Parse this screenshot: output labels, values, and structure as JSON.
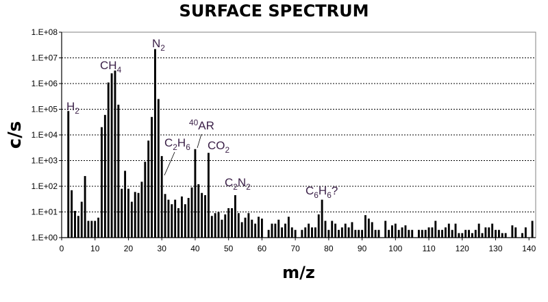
{
  "chart_data": {
    "type": "bar",
    "title": "SURFACE SPECTRUM",
    "xlabel": "m/z",
    "ylabel": "c/s",
    "y_scale": "log",
    "ylim": [
      1,
      100000000
    ],
    "xlim": [
      0,
      142
    ],
    "grid": "horizontal dotted",
    "x_ticks": [
      "0",
      "10",
      "20",
      "30",
      "40",
      "50",
      "60",
      "70",
      "80",
      "90",
      "100",
      "110",
      "120",
      "130",
      "140"
    ],
    "y_ticks": [
      "1.E+00",
      "1.E+01",
      "1.E+02",
      "1.E+03",
      "1.E+04",
      "1.E+05",
      "1.E+06",
      "1.E+07",
      "1.E+08"
    ],
    "series": [
      {
        "x": [
          2,
          3,
          4,
          5,
          6,
          7,
          8,
          9,
          10,
          11,
          12,
          13,
          14,
          15,
          16,
          17,
          18,
          19,
          20,
          21,
          22,
          23,
          24,
          25,
          26,
          27,
          28,
          29,
          30,
          31,
          32,
          33,
          34,
          35,
          36,
          37,
          38,
          39,
          40,
          41,
          42,
          43,
          44,
          45,
          46,
          47,
          48,
          49,
          50,
          51,
          52,
          53,
          54,
          55,
          56,
          57,
          58,
          59,
          60,
          62,
          63,
          64,
          65,
          66,
          67,
          68,
          69,
          70,
          72,
          73,
          74,
          75,
          76,
          77,
          78,
          79,
          80,
          81,
          82,
          83,
          84,
          85,
          86,
          87,
          88,
          89,
          90,
          91,
          92,
          93,
          94,
          95,
          97,
          98,
          99,
          100,
          101,
          102,
          103,
          104,
          105,
          107,
          108,
          109,
          110,
          111,
          112,
          113,
          114,
          115,
          116,
          117,
          118,
          119,
          120,
          121,
          122,
          123,
          124,
          125,
          126,
          127,
          128,
          129,
          130,
          131,
          132,
          133,
          135,
          136,
          138,
          139,
          141
        ],
        "y": [
          85000,
          70,
          11,
          7,
          25,
          250,
          4.5,
          4.5,
          4.5,
          6,
          20000,
          60000,
          1100000,
          2500000,
          3200000,
          150000,
          80,
          400,
          80,
          25,
          60,
          55,
          150,
          900,
          6000,
          50000,
          22000000,
          250000,
          1500,
          50,
          30,
          20,
          30,
          14,
          40,
          20,
          35,
          90,
          2800,
          120,
          55,
          45,
          2000,
          7,
          9,
          10,
          5,
          8,
          14,
          14,
          45,
          9,
          4,
          6,
          9,
          5,
          3.5,
          6.5,
          5.5,
          2,
          3.5,
          3.5,
          5,
          2.5,
          3.5,
          6.5,
          2.5,
          2,
          2,
          2.5,
          3.5,
          2.5,
          2.5,
          8,
          30,
          4.5,
          2,
          4.5,
          3.5,
          2,
          2.5,
          3.5,
          2.5,
          4,
          2,
          2,
          2,
          7.5,
          5.5,
          4,
          2,
          2,
          4.5,
          2,
          3,
          3.5,
          2,
          2.5,
          3,
          2,
          2,
          2,
          2,
          2,
          2.5,
          2.5,
          4.5,
          2,
          2,
          2.5,
          3.5,
          2,
          3.5,
          1.5,
          1.5,
          2,
          2,
          1.5,
          2,
          3.5,
          1.5,
          2.5,
          2.5,
          3.5,
          2,
          2,
          1.5,
          1.5,
          3,
          2.5,
          1.5,
          2.5,
          4.5
        ]
      }
    ],
    "annotations": [
      {
        "base": "H",
        "sub": "2",
        "mz": 2
      },
      {
        "base": "CH",
        "sub": "4",
        "mz": 15
      },
      {
        "base": "N",
        "sub": "2",
        "mz": 28
      },
      {
        "sup": "40",
        "base": "AR",
        "mz": 40
      },
      {
        "parts": [
          [
            "C",
            ""
          ],
          [
            "2",
            "sub"
          ],
          [
            "H",
            ""
          ],
          [
            "6",
            "sub"
          ]
        ],
        "mz": 30
      },
      {
        "parts": [
          [
            "CO",
            ""
          ],
          [
            "2",
            "sub"
          ]
        ],
        "mz": 44
      },
      {
        "parts": [
          [
            "C",
            ""
          ],
          [
            "2",
            "sub"
          ],
          [
            "N",
            ""
          ],
          [
            "2",
            "sub"
          ]
        ],
        "mz": 52
      },
      {
        "parts": [
          [
            "C",
            ""
          ],
          [
            "6",
            "sub"
          ],
          [
            "H",
            ""
          ],
          [
            "6",
            "sub"
          ],
          [
            "?",
            ""
          ]
        ],
        "mz": 78
      }
    ]
  }
}
